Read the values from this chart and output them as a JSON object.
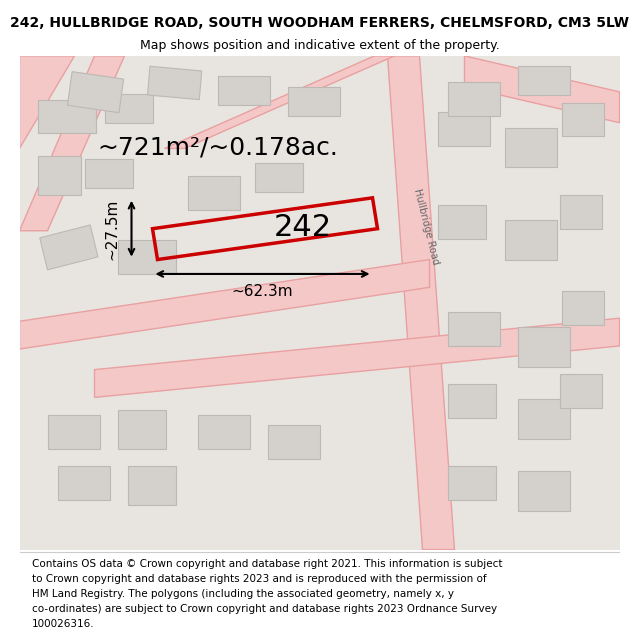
{
  "title_line1": "242, HULLBRIDGE ROAD, SOUTH WOODHAM FERRERS, CHELMSFORD, CM3 5LW",
  "title_line2": "Map shows position and indicative extent of the property.",
  "area_label": "~721m²/~0.178ac.",
  "property_number": "242",
  "width_label": "~62.3m",
  "height_label": "~27.5m",
  "road_label": "Hullbridge Road",
  "footer_lines": [
    "Contains OS data © Crown copyright and database right 2021. This information is subject",
    "to Crown copyright and database rights 2023 and is reproduced with the permission of",
    "HM Land Registry. The polygons (including the associated geometry, namely x, y",
    "co-ordinates) are subject to Crown copyright and database rights 2023 Ordnance Survey",
    "100026316."
  ],
  "map_bg": "#e8e5e1",
  "road_color": "#f5c8c8",
  "road_outline": "#e8a0a0",
  "property_edge": "#cc0000",
  "building_fill": "#d4d0cc",
  "building_edge": "#bcb8b4",
  "title_fontsize": 10,
  "subtitle_fontsize": 9,
  "area_fontsize": 18,
  "number_fontsize": 22,
  "dim_fontsize": 11,
  "footer_fontsize": 7.5
}
